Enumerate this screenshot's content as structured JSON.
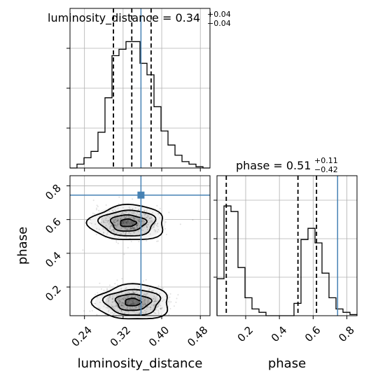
{
  "chart_data": {
    "type": "corner",
    "parameters": [
      "luminosity_distance",
      "phase"
    ],
    "titles": [
      {
        "param": "luminosity_distance",
        "text": "luminosity_distance = 0.34",
        "sup": "+0.04",
        "sub": "−0.04"
      },
      {
        "param": "phase",
        "text": "phase = 0.51",
        "sup": "+0.11",
        "sub": "−0.42"
      }
    ],
    "xlabels": [
      "luminosity_distance",
      "phase"
    ],
    "ylabel": "phase",
    "luminosity_distance": {
      "range": [
        0.21,
        0.5
      ],
      "ticks": [
        0.24,
        0.32,
        0.4,
        0.48
      ],
      "tick_labels": [
        "0.24",
        "0.32",
        "0.40",
        "0.48"
      ],
      "quantiles": [
        0.3,
        0.338,
        0.378
      ],
      "truth": 0.357,
      "hist_edges": [
        0.21,
        0.2245,
        0.239,
        0.2535,
        0.268,
        0.2825,
        0.297,
        0.3115,
        0.326,
        0.3405,
        0.355,
        0.3695,
        0.384,
        0.3985,
        0.413,
        0.4275,
        0.442,
        0.4565,
        0.471,
        0.4855,
        0.5
      ],
      "hist_counts": [
        0.0,
        0.03,
        0.08,
        0.13,
        0.28,
        0.55,
        0.88,
        0.93,
        0.99,
        0.99,
        0.82,
        0.73,
        0.48,
        0.29,
        0.18,
        0.1,
        0.05,
        0.03,
        0.01,
        0.0
      ]
    },
    "phase": {
      "range": [
        0.03,
        0.86
      ],
      "ticks": [
        0.2,
        0.4,
        0.6,
        0.8
      ],
      "tick_labels": [
        "0.2",
        "0.4",
        "0.6",
        "0.8"
      ],
      "quantiles": [
        0.085,
        0.51,
        0.62
      ],
      "truth": 0.745,
      "hist_edges": [
        0.03,
        0.0715,
        0.113,
        0.1545,
        0.196,
        0.2375,
        0.279,
        0.3205,
        0.362,
        0.4035,
        0.445,
        0.4865,
        0.528,
        0.5695,
        0.611,
        0.6525,
        0.694,
        0.7355,
        0.777,
        0.8185,
        0.86
      ],
      "hist_counts": [
        0.33,
        0.98,
        0.93,
        0.43,
        0.16,
        0.06,
        0.03,
        0.0,
        0.0,
        0.0,
        0.0,
        0.11,
        0.68,
        0.78,
        0.65,
        0.38,
        0.16,
        0.06,
        0.03,
        0.01
      ]
    },
    "joint": {
      "modes": [
        {
          "x": 0.33,
          "y": 0.58,
          "sx": 0.03,
          "sy": 0.04
        },
        {
          "x": 0.34,
          "y": 0.11,
          "sx": 0.03,
          "sy": 0.04
        }
      ],
      "truth": {
        "x": 0.357,
        "y": 0.745
      }
    },
    "grid": true
  }
}
